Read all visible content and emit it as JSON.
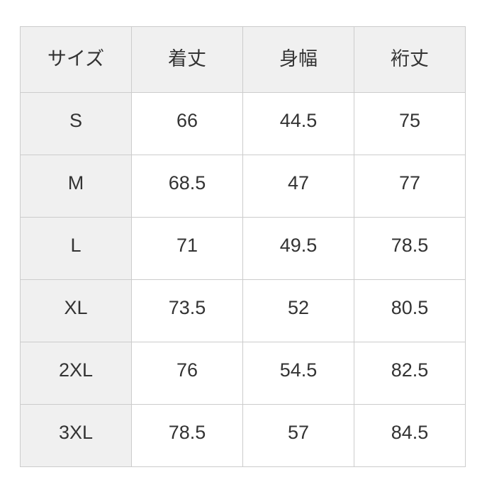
{
  "chart_data": {
    "type": "table",
    "title": "",
    "columns": [
      "サイズ",
      "着丈",
      "身幅",
      "裄丈"
    ],
    "rows": [
      [
        "S",
        "66",
        "44.5",
        "75"
      ],
      [
        "M",
        "68.5",
        "47",
        "77"
      ],
      [
        "L",
        "71",
        "49.5",
        "78.5"
      ],
      [
        "XL",
        "73.5",
        "52",
        "80.5"
      ],
      [
        "2XL",
        "76",
        "54.5",
        "82.5"
      ],
      [
        "3XL",
        "78.5",
        "57",
        "84.5"
      ]
    ],
    "layout": {
      "header_row": true,
      "row_header_column": true,
      "grid": "on"
    }
  },
  "colors": {
    "page_bg": "#ffffff",
    "header_bg": "#f0f0f0",
    "row_header_bg": "#f0f0f0",
    "cell_bg": "#ffffff",
    "border": "#cccccc",
    "text": "#333333"
  }
}
